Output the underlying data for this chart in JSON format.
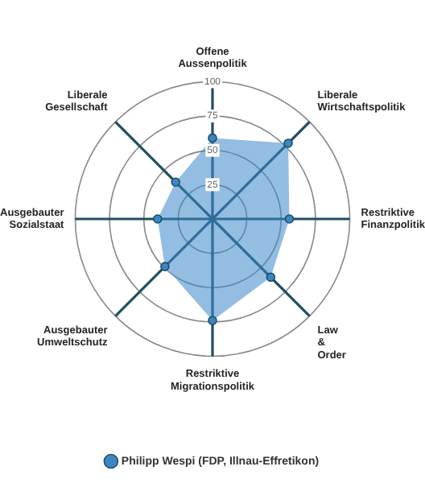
{
  "chart_data": {
    "type": "radar",
    "categories": [
      "Offene Aussenpolitik",
      "Liberale Wirtschaftspolitik",
      "Restriktive Finanzpolitik",
      "Law & Order",
      "Restriktive Migrationspolitik",
      "Ausgebauter Umweltschutz",
      "Ausgebauter Sozialstaat",
      "Liberale Gesellschaft"
    ],
    "series": [
      {
        "name": "Philipp Wespi (FDP, Illnau-Effretikon)",
        "color": "#3a87c8",
        "values": [
          59,
          78,
          56,
          60,
          74,
          49,
          40,
          38
        ]
      }
    ],
    "ylim": [
      0,
      100
    ],
    "yticks": [
      25,
      50,
      75,
      100
    ],
    "grid": true,
    "legend": "bottom",
    "marker": "circle"
  }
}
